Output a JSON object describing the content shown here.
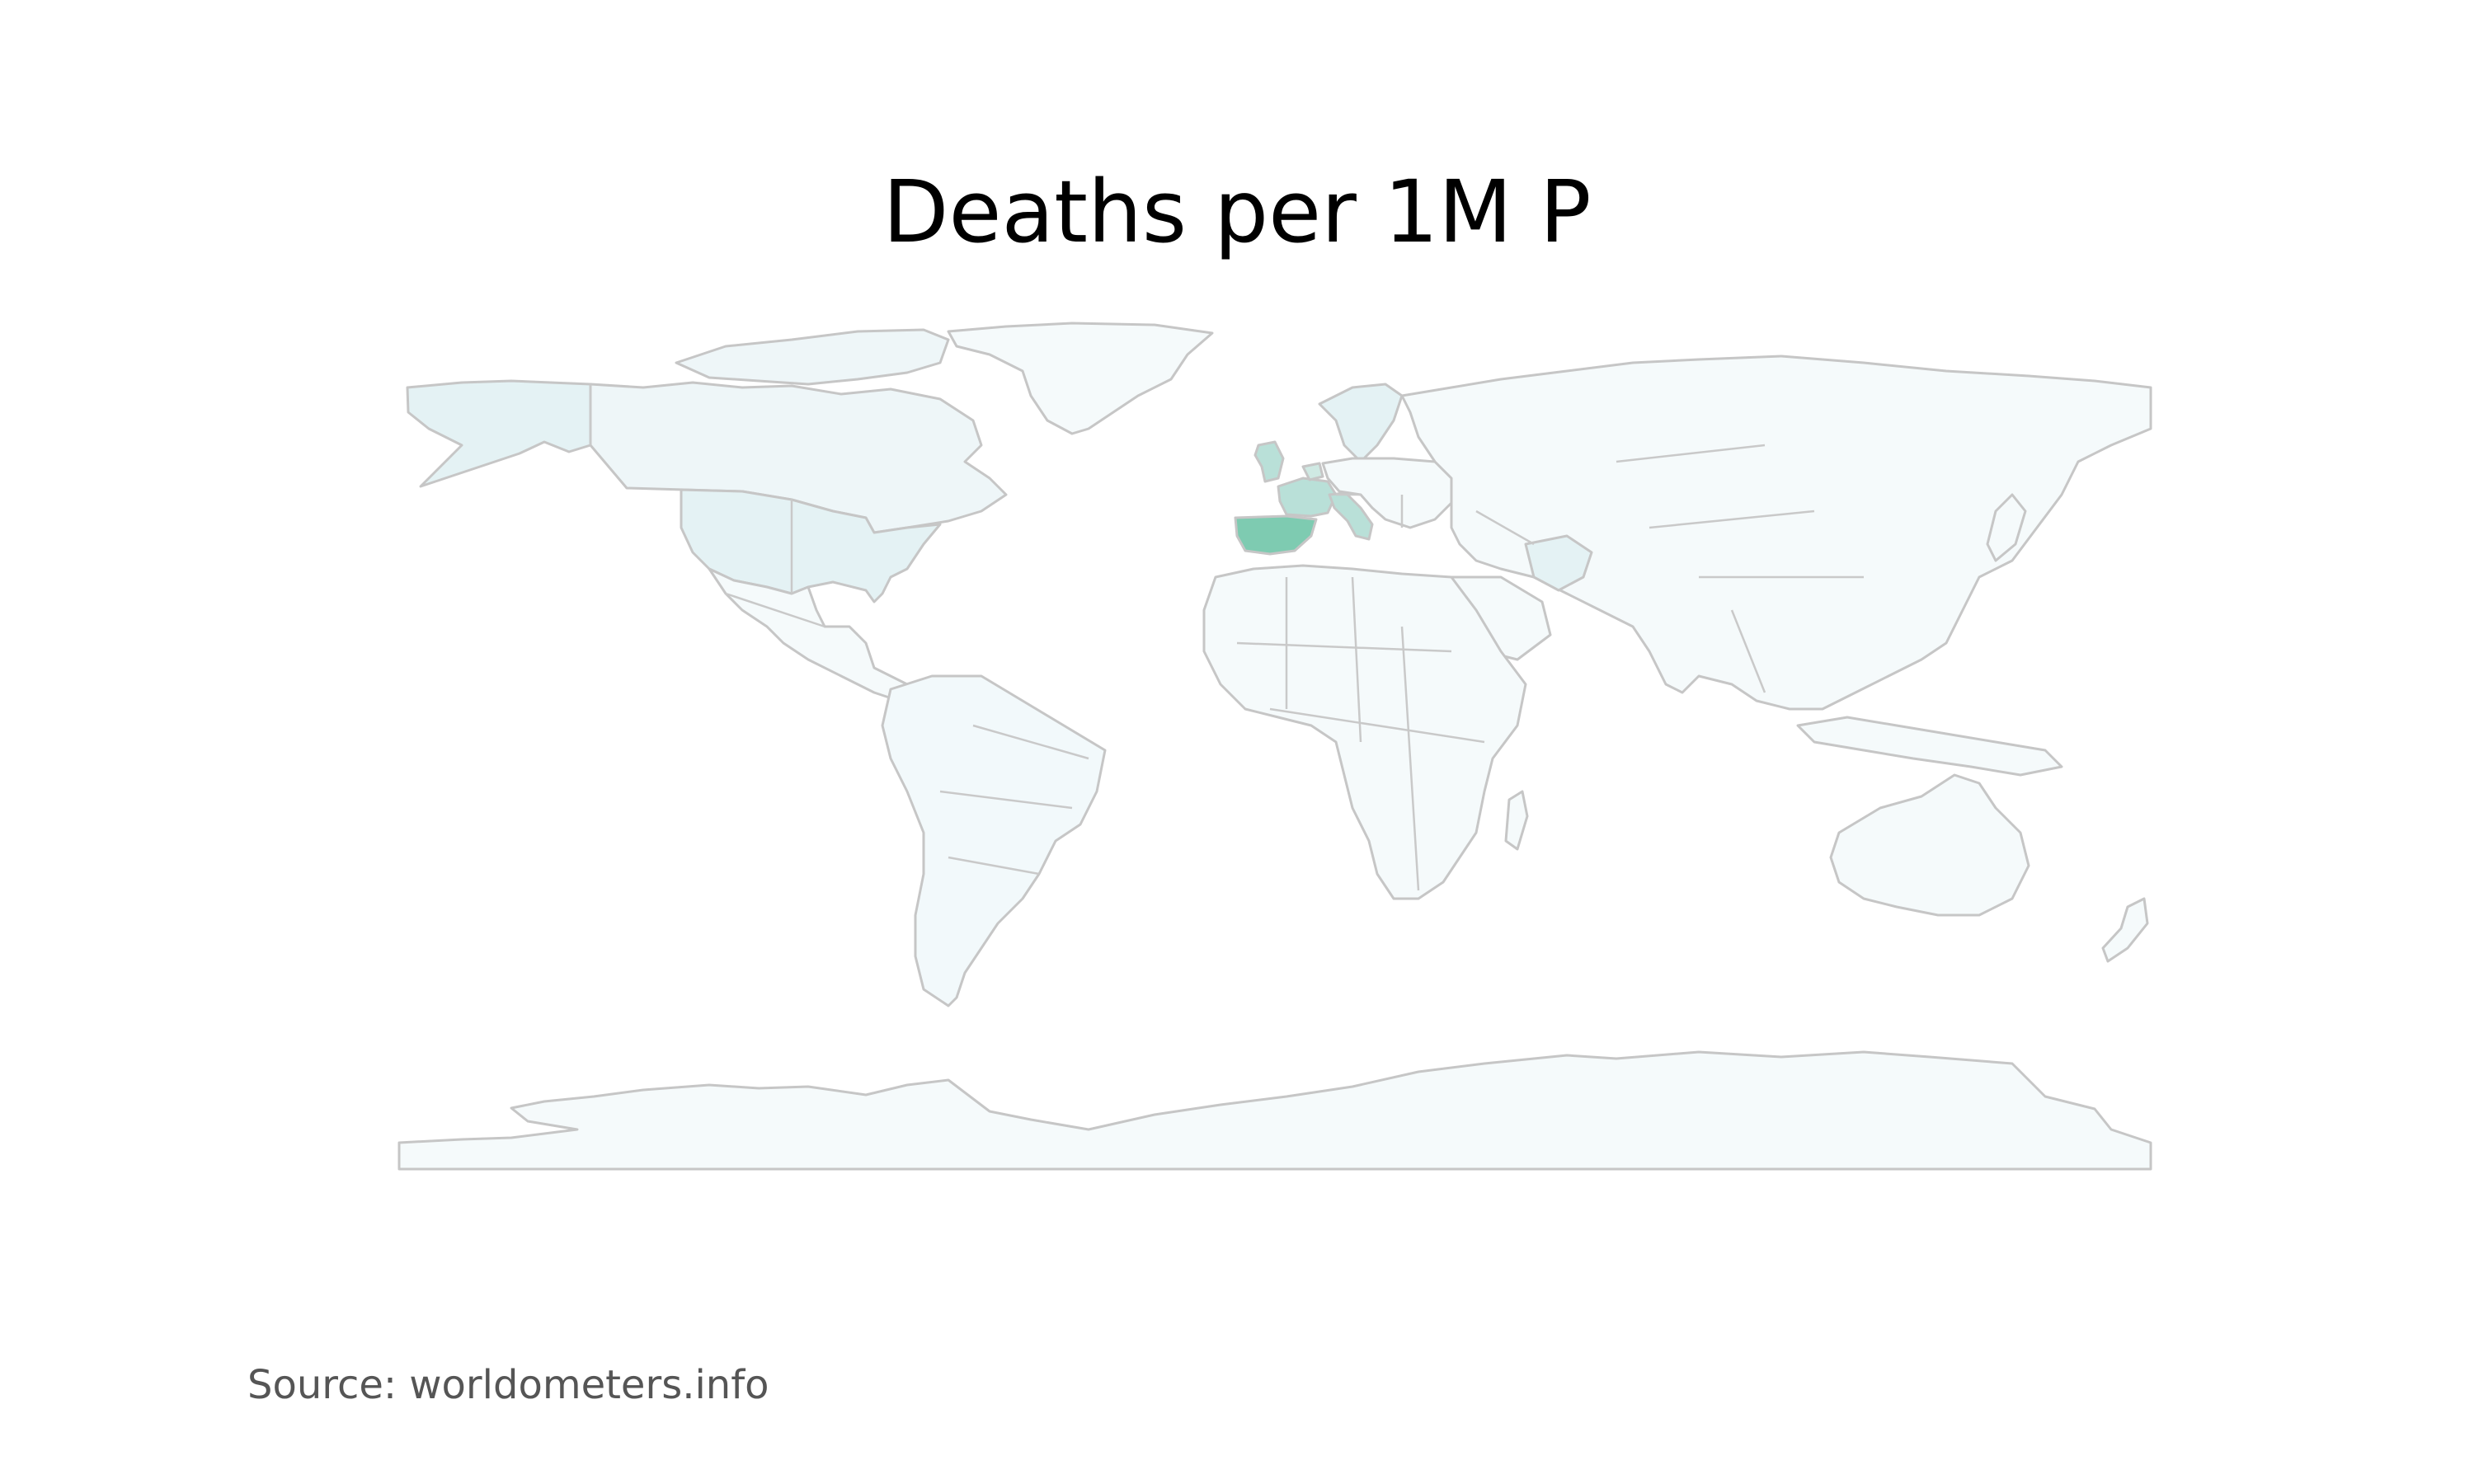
{
  "map": {
    "title": "Deaths per 1M P",
    "source": "Source: worldometers.info",
    "colors": {
      "base": "#f5fafb",
      "light": "#e4f2f4",
      "medium": "#b9e0d8",
      "high": "#7ecbb1",
      "border": "#c6c6c6"
    },
    "highlighted_countries": [
      {
        "name": "Spain",
        "level": "high"
      },
      {
        "name": "Italy",
        "level": "medium"
      },
      {
        "name": "France",
        "level": "medium"
      },
      {
        "name": "United Kingdom",
        "level": "medium"
      },
      {
        "name": "Belgium",
        "level": "medium"
      },
      {
        "name": "Netherlands",
        "level": "light"
      },
      {
        "name": "Switzerland",
        "level": "light"
      },
      {
        "name": "Sweden",
        "level": "light"
      },
      {
        "name": "United States",
        "level": "light"
      },
      {
        "name": "Iran",
        "level": "light"
      }
    ]
  }
}
